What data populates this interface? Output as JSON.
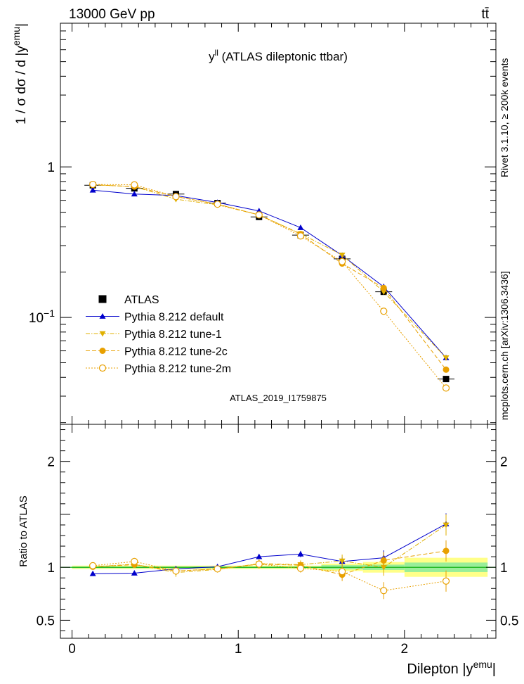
{
  "header": {
    "left_label": "13000 GeV pp",
    "right_label": "tt̄"
  },
  "side_labels": {
    "rivet": "Rivet 3.1.10, ≥ 200k events",
    "mcplots": "mcplots.cern.ch [arXiv:1306.3436]"
  },
  "chart_data": [
    {
      "type": "line",
      "title_main": "y",
      "title_sup": "ll",
      "title_rest": " (ATLAS dileptonic ttbar)",
      "ylabel_main": "1 / σ  dσ / d |y",
      "ylabel_sup": "emu",
      "ylabel_end": "|",
      "yscale": "log",
      "xlim": [
        -0.07,
        2.55
      ],
      "ylim": [
        0.0195,
        9.0
      ],
      "y_ticks": [
        {
          "v": 1,
          "label": "1"
        },
        {
          "v": 0.1,
          "label": "10",
          "sup": "−1"
        }
      ],
      "watermark": "ATLAS_2019_I1759875",
      "legend_position": "bottom-left",
      "x": [
        0.125,
        0.375,
        0.625,
        0.875,
        1.125,
        1.375,
        1.625,
        1.875,
        2.25
      ],
      "series": [
        {
          "name": "ATLAS",
          "color": "#000000",
          "marker": "square",
          "line": "none",
          "values": [
            0.755,
            0.72,
            0.66,
            0.575,
            0.465,
            0.352,
            0.245,
            0.148,
            0.039
          ]
        },
        {
          "name": "Pythia 8.212 default",
          "color": "#0000cc",
          "marker": "triangle-up",
          "line": "solid",
          "values": [
            0.7,
            0.66,
            0.645,
            0.58,
            0.51,
            0.395,
            0.258,
            0.16,
            0.054
          ]
        },
        {
          "name": "Pythia 8.212 tune-1",
          "color": "#e0b000",
          "marker": "triangle-down",
          "line": "dashdot",
          "values": [
            0.76,
            0.74,
            0.61,
            0.56,
            0.48,
            0.36,
            0.26,
            0.148,
            0.054
          ]
        },
        {
          "name": "Pythia 8.212 tune-2c",
          "color": "#e8a000",
          "marker": "circle",
          "line": "dashed",
          "values": [
            0.76,
            0.74,
            0.635,
            0.565,
            0.48,
            0.358,
            0.228,
            0.157,
            0.045
          ]
        },
        {
          "name": "Pythia 8.212 tune-2m",
          "color": "#e8a000",
          "marker": "circle-open",
          "line": "dotted",
          "values": [
            0.765,
            0.76,
            0.635,
            0.565,
            0.48,
            0.348,
            0.235,
            0.11,
            0.034
          ]
        }
      ]
    },
    {
      "type": "line",
      "ylabel": "Ratio to ATLAS",
      "xlabel_main": "Dilepton |y",
      "xlabel_sup": "emu",
      "xlabel_end": "|",
      "xlim": [
        -0.07,
        2.55
      ],
      "ylim": [
        0.33,
        2.35
      ],
      "y_ticks": [
        {
          "v": 0.5,
          "label": "0.5"
        },
        {
          "v": 1,
          "label": "1"
        },
        {
          "v": 2,
          "label": "2"
        }
      ],
      "x_ticks": [
        {
          "v": 0,
          "label": "0"
        },
        {
          "v": 1,
          "label": "1"
        },
        {
          "v": 2,
          "label": "2"
        }
      ],
      "x": [
        0.125,
        0.375,
        0.625,
        0.875,
        1.125,
        1.375,
        1.625,
        1.875,
        2.25
      ],
      "bands": [
        {
          "x0": 0.0,
          "x1": 1.5,
          "inner": 0.008,
          "outer": 0.016
        },
        {
          "x0": 1.5,
          "x1": 1.75,
          "inner": 0.02,
          "outer": 0.035
        },
        {
          "x0": 1.75,
          "x1": 2.0,
          "inner": 0.025,
          "outer": 0.05
        },
        {
          "x0": 2.0,
          "x1": 2.5,
          "inner": 0.045,
          "outer": 0.09
        }
      ],
      "series": [
        {
          "name": "Pythia 8.212 default",
          "color": "#0000cc",
          "marker": "triangle-up",
          "line": "solid",
          "values": [
            0.94,
            0.945,
            0.985,
            1.005,
            1.1,
            1.125,
            1.055,
            1.09,
            1.41
          ],
          "err": [
            0.02,
            0.02,
            0.015,
            0.015,
            0.02,
            0.03,
            0.04,
            0.07,
            0.1
          ]
        },
        {
          "name": "Pythia 8.212 tune-1",
          "color": "#e0b000",
          "marker": "triangle-down",
          "line": "dashdot",
          "values": [
            1.005,
            1.03,
            0.95,
            0.98,
            1.035,
            1.025,
            1.06,
            1.0,
            1.4
          ],
          "err": [
            0.02,
            0.02,
            0.04,
            0.03,
            0.04,
            0.04,
            0.06,
            0.08,
            0.1
          ]
        },
        {
          "name": "Pythia 8.212 tune-2c",
          "color": "#e8a000",
          "marker": "circle",
          "line": "dashed",
          "values": [
            1.005,
            1.025,
            0.965,
            0.985,
            1.03,
            1.02,
            0.93,
            1.065,
            1.155
          ],
          "err": [
            0.02,
            0.02,
            0.03,
            0.03,
            0.04,
            0.04,
            0.06,
            0.08,
            0.1
          ]
        },
        {
          "name": "Pythia 8.212 tune-2m",
          "color": "#e8a000",
          "marker": "circle-open",
          "line": "dotted",
          "values": [
            1.015,
            1.055,
            0.965,
            0.985,
            1.03,
            0.99,
            0.96,
            0.78,
            0.87
          ],
          "err": [
            0.02,
            0.02,
            0.03,
            0.03,
            0.04,
            0.04,
            0.06,
            0.08,
            0.1
          ]
        }
      ]
    }
  ]
}
